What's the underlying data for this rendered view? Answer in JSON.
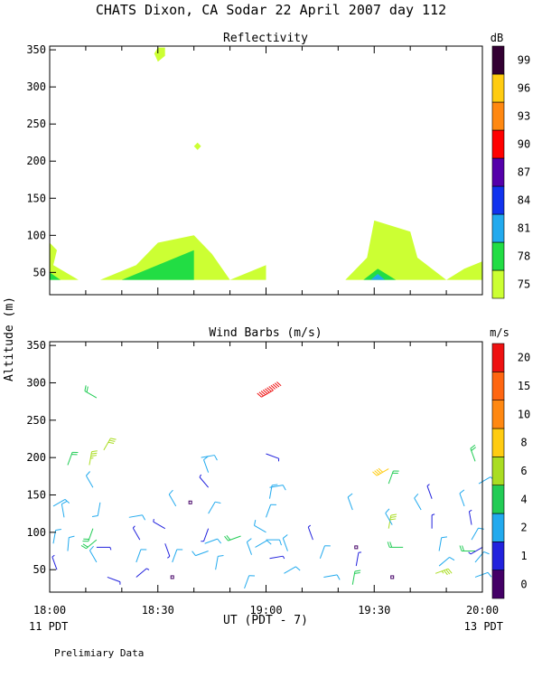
{
  "title": "CHATS Dixon, CA  Sodar  22 April 2007  day 112",
  "footnote": "Prelimiary Data",
  "colors": {
    "reflectivity_scale": [
      "#ccff33",
      "#22dd44",
      "#22aaee",
      "#1133ee",
      "#5500aa",
      "#ff0000",
      "#ff8811",
      "#ffcc11",
      "#330033"
    ],
    "wind_scale": [
      "#440066",
      "#2222dd",
      "#22aaee",
      "#22cc55",
      "#aadd22",
      "#ffcc11",
      "#ff8811",
      "#ff6611",
      "#ee1111"
    ]
  },
  "chart_data": [
    {
      "type": "heatmap",
      "title": "Reflectivity",
      "ylabel": "Altitude (m)",
      "xlim": [
        "18:00",
        "20:00"
      ],
      "ylim": [
        20,
        355
      ],
      "yticks": [
        "50",
        "100",
        "150",
        "200",
        "250",
        "300",
        "350"
      ],
      "colorbar": {
        "label": "dB",
        "levels": [
          "75",
          "78",
          "81",
          "84",
          "87",
          "90",
          "93",
          "96",
          "99"
        ]
      },
      "regions": [
        {
          "level": "75",
          "points": [
            [
              "18:00",
              40
            ],
            [
              "18:00",
              90
            ],
            [
              "18:02",
              80
            ],
            [
              "18:01",
              60
            ],
            [
              "18:08",
              40
            ]
          ]
        },
        {
          "level": "75",
          "points": [
            [
              "18:14",
              40
            ],
            [
              "18:24",
              60
            ],
            [
              "18:30",
              90
            ],
            [
              "18:40",
              100
            ],
            [
              "18:45",
              75
            ],
            [
              "18:50",
              40
            ],
            [
              "19:00",
              60
            ],
            [
              "19:00",
              40
            ]
          ]
        },
        {
          "level": "75",
          "points": [
            [
              "19:22",
              40
            ],
            [
              "19:28",
              70
            ],
            [
              "19:30",
              120
            ],
            [
              "19:40",
              105
            ],
            [
              "19:42",
              70
            ],
            [
              "19:50",
              40
            ],
            [
              "19:55",
              55
            ],
            [
              "20:00",
              65
            ],
            [
              "20:00",
              40
            ]
          ]
        },
        {
          "level": "75",
          "points": [
            [
              "18:29",
              345
            ],
            [
              "18:30",
              353
            ],
            [
              "18:32",
              353
            ],
            [
              "18:32",
              342
            ],
            [
              "18:30",
              334
            ]
          ]
        },
        {
          "level": "75",
          "points": [
            [
              "18:40",
              220
            ],
            [
              "18:41",
              225
            ],
            [
              "18:42",
              220
            ],
            [
              "18:41",
              215
            ]
          ]
        },
        {
          "level": "78",
          "points": [
            [
              "18:00",
              40
            ],
            [
              "18:00",
              50
            ],
            [
              "18:03",
              40
            ]
          ]
        },
        {
          "level": "78",
          "points": [
            [
              "18:20",
              40
            ],
            [
              "18:40",
              80
            ],
            [
              "18:40",
              40
            ]
          ]
        },
        {
          "level": "78",
          "points": [
            [
              "19:27",
              40
            ],
            [
              "19:31",
              55
            ],
            [
              "19:36",
              40
            ]
          ]
        },
        {
          "level": "81",
          "points": [
            [
              "19:29",
              40
            ],
            [
              "19:31",
              48
            ],
            [
              "19:33",
              40
            ]
          ]
        }
      ]
    },
    {
      "type": "scatter",
      "title": "Wind Barbs (m/s)",
      "ylabel": "Altitude (m)",
      "xlabel": "UT  (PDT - 7)",
      "xlim": [
        "18:00",
        "20:00"
      ],
      "ylim": [
        20,
        355
      ],
      "xticks": [
        "18:00",
        "18:30",
        "19:00",
        "19:30",
        "20:00"
      ],
      "yticks": [
        "50",
        "100",
        "150",
        "200",
        "250",
        "300",
        "350"
      ],
      "x_start_note": "11 PDT",
      "x_end_note": "13 PDT",
      "colorbar": {
        "label": "m/s",
        "levels": [
          "0",
          "1",
          "2",
          "4",
          "6",
          "8",
          "10",
          "15",
          "20"
        ]
      },
      "barbs": [
        {
          "t": "18:01",
          "alt": 135,
          "speed": 2.5,
          "dir": 60
        },
        {
          "t": "18:01",
          "alt": 85,
          "speed": 2.5,
          "dir": 10
        },
        {
          "t": "18:02",
          "alt": 50,
          "speed": 1.5,
          "dir": 340
        },
        {
          "t": "18:04",
          "alt": 120,
          "speed": 2.5,
          "dir": 350
        },
        {
          "t": "18:05",
          "alt": 75,
          "speed": 2.5,
          "dir": 5
        },
        {
          "t": "18:05",
          "alt": 190,
          "speed": 4.5,
          "dir": 20
        },
        {
          "t": "18:11",
          "alt": 190,
          "speed": 7,
          "dir": 10
        },
        {
          "t": "18:12",
          "alt": 160,
          "speed": 2.5,
          "dir": 330
        },
        {
          "t": "18:12",
          "alt": 105,
          "speed": 4.5,
          "dir": 200
        },
        {
          "t": "18:13",
          "alt": 90,
          "speed": 4.5,
          "dir": 230
        },
        {
          "t": "18:13",
          "alt": 80,
          "speed": 1.5,
          "dir": 90
        },
        {
          "t": "18:13",
          "alt": 60,
          "speed": 2.5,
          "dir": 330
        },
        {
          "t": "18:14",
          "alt": 140,
          "speed": 2.5,
          "dir": 190
        },
        {
          "t": "18:13",
          "alt": 280,
          "speed": 4.5,
          "dir": 300
        },
        {
          "t": "18:15",
          "alt": 210,
          "speed": 6,
          "dir": 30
        },
        {
          "t": "18:16",
          "alt": 40,
          "speed": 1.5,
          "dir": 110
        },
        {
          "t": "18:22",
          "alt": 120,
          "speed": 2.5,
          "dir": 80
        },
        {
          "t": "18:24",
          "alt": 40,
          "speed": 1.5,
          "dir": 50
        },
        {
          "t": "18:24",
          "alt": 60,
          "speed": 2.5,
          "dir": 20
        },
        {
          "t": "18:25",
          "alt": 90,
          "speed": 1.5,
          "dir": 330
        },
        {
          "t": "18:32",
          "alt": 105,
          "speed": 1.5,
          "dir": 300
        },
        {
          "t": "18:32",
          "alt": 85,
          "speed": 1.5,
          "dir": 160
        },
        {
          "t": "18:34",
          "alt": 40,
          "speed": 0.5,
          "dir": 0
        },
        {
          "t": "18:34",
          "alt": 60,
          "speed": 2.5,
          "dir": 20
        },
        {
          "t": "18:35",
          "alt": 135,
          "speed": 2.5,
          "dir": 330
        },
        {
          "t": "18:39",
          "alt": 140,
          "speed": 0.5,
          "dir": 0
        },
        {
          "t": "18:42",
          "alt": 200,
          "speed": 2.5,
          "dir": 80
        },
        {
          "t": "18:44",
          "alt": 180,
          "speed": 2.5,
          "dir": 340
        },
        {
          "t": "18:44",
          "alt": 160,
          "speed": 1.5,
          "dir": 320
        },
        {
          "t": "18:44",
          "alt": 125,
          "speed": 2.5,
          "dir": 30
        },
        {
          "t": "18:44",
          "alt": 105,
          "speed": 1.5,
          "dir": 200
        },
        {
          "t": "18:43",
          "alt": 85,
          "speed": 2.5,
          "dir": 70
        },
        {
          "t": "18:44",
          "alt": 75,
          "speed": 2.5,
          "dir": 250
        },
        {
          "t": "18:46",
          "alt": 50,
          "speed": 2.5,
          "dir": 10
        },
        {
          "t": "18:53",
          "alt": 95,
          "speed": 4.5,
          "dir": 250
        },
        {
          "t": "18:54",
          "alt": 25,
          "speed": 2.5,
          "dir": 20
        },
        {
          "t": "18:56",
          "alt": 70,
          "speed": 2.5,
          "dir": 340
        },
        {
          "t": "18:57",
          "alt": 80,
          "speed": 2.5,
          "dir": 60
        },
        {
          "t": "19:00",
          "alt": 205,
          "speed": 1.5,
          "dir": 110
        },
        {
          "t": "19:01",
          "alt": 160,
          "speed": 2.5,
          "dir": 80
        },
        {
          "t": "19:01",
          "alt": 145,
          "speed": 2.5,
          "dir": 10
        },
        {
          "t": "19:00",
          "alt": 120,
          "speed": 2.5,
          "dir": 20
        },
        {
          "t": "19:00",
          "alt": 100,
          "speed": 2.5,
          "dir": 300
        },
        {
          "t": "19:00",
          "alt": 90,
          "speed": 2.5,
          "dir": 90
        },
        {
          "t": "19:01",
          "alt": 65,
          "speed": 1.5,
          "dir": 80
        },
        {
          "t": "19:02",
          "alt": 290,
          "speed": 22,
          "dir": 240
        },
        {
          "t": "19:05",
          "alt": 45,
          "speed": 2.5,
          "dir": 60
        },
        {
          "t": "19:06",
          "alt": 75,
          "speed": 2.5,
          "dir": 340
        },
        {
          "t": "19:13",
          "alt": 90,
          "speed": 1.5,
          "dir": 340
        },
        {
          "t": "19:15",
          "alt": 65,
          "speed": 2.5,
          "dir": 20
        },
        {
          "t": "19:16",
          "alt": 40,
          "speed": 2.5,
          "dir": 80
        },
        {
          "t": "19:24",
          "alt": 130,
          "speed": 2.5,
          "dir": 340
        },
        {
          "t": "19:25",
          "alt": 80,
          "speed": 0.5,
          "dir": 0
        },
        {
          "t": "19:25",
          "alt": 55,
          "speed": 1.5,
          "dir": 10
        },
        {
          "t": "19:24",
          "alt": 30,
          "speed": 4.5,
          "dir": 10
        },
        {
          "t": "19:34",
          "alt": 185,
          "speed": 8,
          "dir": 240
        },
        {
          "t": "19:34",
          "alt": 165,
          "speed": 4.5,
          "dir": 20
        },
        {
          "t": "19:34",
          "alt": 105,
          "speed": 6,
          "dir": 10
        },
        {
          "t": "19:35",
          "alt": 110,
          "speed": 2.5,
          "dir": 330
        },
        {
          "t": "19:35",
          "alt": 40,
          "speed": 0.5,
          "dir": 0
        },
        {
          "t": "19:38",
          "alt": 80,
          "speed": 4.5,
          "dir": 270
        },
        {
          "t": "19:43",
          "alt": 130,
          "speed": 2.5,
          "dir": 330
        },
        {
          "t": "19:46",
          "alt": 145,
          "speed": 1.5,
          "dir": 340
        },
        {
          "t": "19:46",
          "alt": 105,
          "speed": 1.5,
          "dir": 0
        },
        {
          "t": "19:48",
          "alt": 75,
          "speed": 2.5,
          "dir": 10
        },
        {
          "t": "19:48",
          "alt": 55,
          "speed": 2.5,
          "dir": 50
        },
        {
          "t": "19:47",
          "alt": 45,
          "speed": 7,
          "dir": 70
        },
        {
          "t": "19:55",
          "alt": 135,
          "speed": 2.5,
          "dir": 340
        },
        {
          "t": "19:57",
          "alt": 110,
          "speed": 1.5,
          "dir": 350
        },
        {
          "t": "19:57",
          "alt": 90,
          "speed": 2.5,
          "dir": 30
        },
        {
          "t": "19:58",
          "alt": 195,
          "speed": 4.5,
          "dir": 340
        },
        {
          "t": "19:59",
          "alt": 165,
          "speed": 2.5,
          "dir": 60
        },
        {
          "t": "19:58",
          "alt": 75,
          "speed": 4.5,
          "dir": 270
        },
        {
          "t": "19:58",
          "alt": 60,
          "speed": 2.5,
          "dir": 40
        },
        {
          "t": "19:58",
          "alt": 40,
          "speed": 2.5,
          "dir": 70
        },
        {
          "t": "20:00",
          "alt": 80,
          "speed": 1.5,
          "dir": 240
        }
      ]
    }
  ]
}
